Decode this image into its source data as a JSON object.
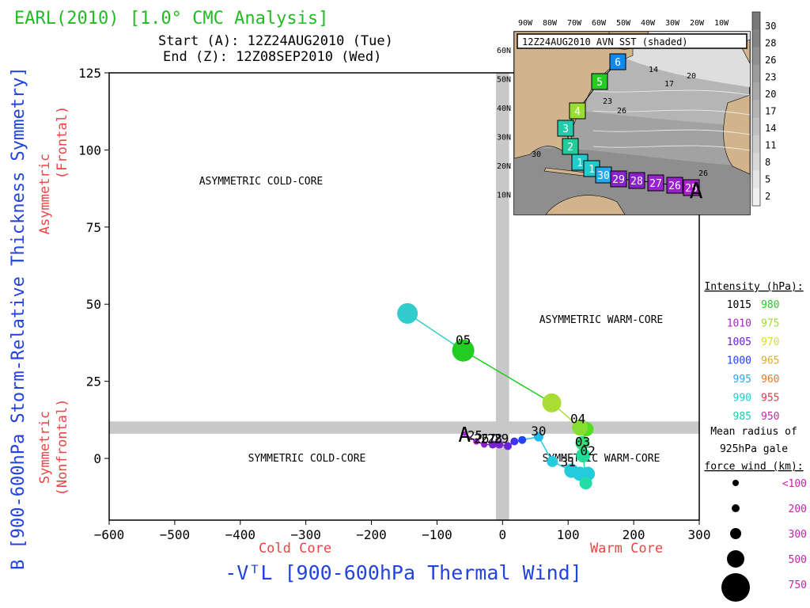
{
  "header": {
    "title": "EARL(2010) [1.0° CMC Analysis]",
    "start_line": "Start (A): 12Z24AUG2010 (Tue)",
    "end_line": "End (Z): 12Z08SEP2010 (Wed)"
  },
  "colors": {
    "title": "#22bb22",
    "axis_blue": "#2244dd",
    "label_red": "#ee4444",
    "gray_band": "#c8c8c8"
  },
  "chart_data": {
    "type": "scatter",
    "title": "EARL(2010) [1.0° CMC Analysis]",
    "xlabel": "-VᵀL [900-600hPa Thermal Wind]",
    "ylabel": "B [900-600hPa Storm-Relative Thickness Symmetry]",
    "xlim": [
      -600,
      300
    ],
    "ylim": [
      -20,
      125
    ],
    "xticks": [
      "-600",
      "-500",
      "-400",
      "-300",
      "-200",
      "-100",
      "0",
      "100",
      "200",
      "300"
    ],
    "yticks": [
      "0",
      "25",
      "50",
      "75",
      "100",
      "125"
    ],
    "x_sub_left": "Cold Core",
    "x_sub_right": "Warm Core",
    "y_sub_top": [
      "Asymmetric",
      "(Frontal)"
    ],
    "y_sub_bottom": [
      "Symmetric",
      "(Nonfrontal)"
    ],
    "quadrants": {
      "asym_cold": "ASYMMETRIC COLD-CORE",
      "asym_warm": "ASYMMETRIC WARM-CORE",
      "sym_cold": "SYMMETRIC COLD-CORE",
      "sym_warm": "SYMMETRIC WARM-CORE"
    },
    "grid": false,
    "band_x": [
      -10,
      10
    ],
    "band_y": [
      8,
      12
    ],
    "track": [
      {
        "x": -58,
        "y": 8,
        "color": "#aa22dd",
        "r": 3
      },
      {
        "x": -40,
        "y": 5.5,
        "color": "#9922cc",
        "r": 4
      },
      {
        "x": -28,
        "y": 4.5,
        "color": "#8822cc",
        "r": 4
      },
      {
        "x": -15,
        "y": 4.5,
        "color": "#7722cc",
        "r": 5
      },
      {
        "x": -5,
        "y": 4.5,
        "color": "#7722cc",
        "r": 5
      },
      {
        "x": 8,
        "y": 4,
        "color": "#6622dd",
        "r": 5
      },
      {
        "x": 18,
        "y": 5.5,
        "color": "#4433ee",
        "r": 5
      },
      {
        "x": 30,
        "y": 6,
        "color": "#2244ee",
        "r": 5
      },
      {
        "x": 55,
        "y": 7,
        "color": "#22bbee",
        "r": 6
      },
      {
        "x": 76,
        "y": -1,
        "color": "#22ccdd",
        "r": 7
      },
      {
        "x": 105,
        "y": -4,
        "color": "#22ccdd",
        "r": 9
      },
      {
        "x": 118,
        "y": -5,
        "color": "#22ccdd",
        "r": 9
      },
      {
        "x": 130,
        "y": -5,
        "color": "#22ccdd",
        "r": 9
      },
      {
        "x": 127,
        "y": -8,
        "color": "#22ddaa",
        "r": 8
      },
      {
        "x": 123,
        "y": 1,
        "color": "#22dd99",
        "r": 9
      },
      {
        "x": 122,
        "y": 5,
        "color": "#33dd77",
        "r": 9
      },
      {
        "x": 128,
        "y": 9.5,
        "color": "#55dd22",
        "r": 9
      },
      {
        "x": 118,
        "y": 10,
        "color": "#88dd33",
        "r": 10
      },
      {
        "x": 75,
        "y": 18,
        "color": "#aadd33",
        "r": 12
      },
      {
        "x": -60,
        "y": 35,
        "color": "#22cc22",
        "r": 14
      },
      {
        "x": -145,
        "y": 47,
        "color": "#33cccc",
        "r": 13
      }
    ],
    "point_labels": [
      {
        "text": "A",
        "x": -58,
        "y": 8
      },
      {
        "text": "25",
        "x": -42,
        "y": 6
      },
      {
        "text": "26",
        "x": -32,
        "y": 5
      },
      {
        "text": "27",
        "x": -22,
        "y": 5
      },
      {
        "text": "28",
        "x": -12,
        "y": 5
      },
      {
        "text": "29",
        "x": -2,
        "y": 5
      },
      {
        "text": "30",
        "x": 55,
        "y": 7.5
      },
      {
        "text": "31",
        "x": 100,
        "y": -2.5
      },
      {
        "text": "02",
        "x": 130,
        "y": 1
      },
      {
        "text": "03",
        "x": 122,
        "y": 4
      },
      {
        "text": "04",
        "x": 115,
        "y": 11.5
      },
      {
        "text": "05",
        "x": -60,
        "y": 37
      }
    ]
  },
  "inset_map": {
    "title": "12Z24AUG2010 AVN SST (shaded)",
    "lon_labels": [
      "90W",
      "80W",
      "70W",
      "60W",
      "50W",
      "40W",
      "30W",
      "20W",
      "10W"
    ],
    "lat_labels": [
      "60N",
      "50N",
      "40N",
      "30N",
      "20N",
      "10N"
    ],
    "colorbar": [
      "30",
      "28",
      "26",
      "23",
      "20",
      "17",
      "14",
      "11",
      "8",
      "5",
      "2"
    ],
    "contour_labels": [
      "14",
      "17",
      "20",
      "23",
      "26",
      "30",
      "26"
    ],
    "track_boxes": [
      {
        "label": "6",
        "color": "#1188ee"
      },
      {
        "label": "5",
        "color": "#22cc22"
      },
      {
        "label": "4",
        "color": "#99dd33"
      },
      {
        "label": "3",
        "color": "#22ccaa"
      },
      {
        "label": "2",
        "color": "#22cc99"
      },
      {
        "label": "1",
        "color": "#22cccc"
      },
      {
        "label": "1",
        "color": "#22cccc"
      },
      {
        "label": "30",
        "color": "#22aaee"
      },
      {
        "label": "29",
        "color": "#8822cc"
      },
      {
        "label": "28",
        "color": "#8822cc"
      },
      {
        "label": "27",
        "color": "#9922cc"
      },
      {
        "label": "26",
        "color": "#9922cc"
      },
      {
        "label": "25",
        "color": "#aa22cc"
      }
    ],
    "start_marker": "A"
  },
  "legend": {
    "title": "Intensity (hPa):",
    "rows": [
      {
        "left": "1015",
        "left_color": "#000000",
        "right": "980",
        "right_color": "#22cc22"
      },
      {
        "left": "1010",
        "left_color": "#aa22cc",
        "right": "975",
        "right_color": "#99dd33"
      },
      {
        "left": "1005",
        "left_color": "#6622dd",
        "right": "970",
        "right_color": "#dddd22"
      },
      {
        "left": "1000",
        "left_color": "#2244ee",
        "right": "965",
        "right_color": "#ddaa22"
      },
      {
        "left": "995",
        "left_color": "#22aaee",
        "right": "960",
        "right_color": "#ee7722"
      },
      {
        "left": "990",
        "left_color": "#22cccc",
        "right": "955",
        "right_color": "#ee3344"
      },
      {
        "left": "985",
        "left_color": "#22ccaa",
        "right": "950",
        "right_color": "#cc22aa"
      }
    ],
    "radius_title": [
      "Mean radius of",
      "925hPa gale",
      "force wind (km):"
    ],
    "radius_rows": [
      "<100",
      "200",
      "300",
      "500",
      "750"
    ]
  }
}
